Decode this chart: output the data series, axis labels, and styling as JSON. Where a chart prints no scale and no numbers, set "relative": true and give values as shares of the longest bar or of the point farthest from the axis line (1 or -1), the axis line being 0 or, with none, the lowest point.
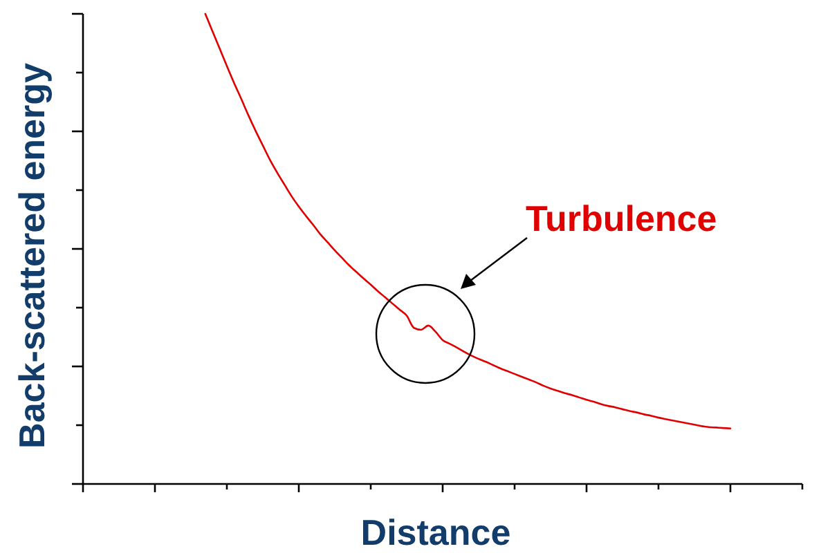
{
  "chart_data": {
    "type": "line",
    "relative": true,
    "xlabel": "Distance",
    "ylabel": "Back-scattered energy",
    "annotations": [
      "Turbulence"
    ],
    "categories": [
      null,
      null,
      null,
      null,
      null,
      null,
      null,
      null,
      null,
      null,
      null,
      null,
      null,
      null,
      null,
      null,
      null,
      null,
      null,
      null,
      null,
      null,
      null,
      null,
      null,
      null,
      null,
      null,
      null,
      null,
      null,
      null,
      null,
      null,
      null,
      null,
      null,
      null,
      null,
      null,
      null,
      null,
      null,
      null,
      null,
      null,
      null,
      null,
      null,
      null,
      null,
      null,
      null,
      null,
      null,
      null,
      null,
      null,
      null,
      null,
      null,
      null,
      null,
      null,
      null,
      null,
      null,
      null,
      null,
      null,
      null,
      null,
      null,
      null,
      null,
      null,
      null,
      null,
      null,
      null,
      null,
      null,
      null,
      null,
      null,
      null,
      null,
      null,
      null,
      null,
      null,
      null,
      null,
      null,
      null,
      null,
      null,
      null,
      null,
      null,
      null
    ],
    "series": [
      {
        "color": "#e00000",
        "values": [
          null,
          null,
          null,
          null,
          null,
          null,
          null,
          null,
          null,
          null,
          null,
          null,
          null,
          null,
          null,
          null,
          null,
          1.0,
          0.963,
          0.926,
          0.889,
          0.853,
          0.819,
          0.784,
          0.751,
          0.72,
          0.689,
          0.662,
          0.637,
          0.612,
          0.59,
          0.57,
          0.551,
          0.531,
          0.514,
          0.497,
          0.481,
          0.465,
          0.451,
          0.437,
          0.424,
          0.41,
          0.397,
          0.384,
          0.371,
          0.358,
          0.332,
          0.328,
          0.337,
          0.324,
          0.306,
          0.298,
          0.29,
          0.281,
          0.273,
          0.266,
          0.26,
          0.253,
          0.246,
          0.24,
          0.234,
          0.228,
          0.222,
          0.216,
          0.209,
          0.203,
          0.198,
          0.193,
          0.189,
          0.184,
          0.179,
          0.175,
          0.17,
          0.166,
          0.163,
          0.159,
          0.155,
          0.152,
          0.148,
          0.145,
          0.141,
          0.138,
          0.135,
          0.132,
          0.129,
          0.126,
          0.123,
          0.121,
          0.12,
          0.119,
          0.118,
          null,
          null,
          null,
          null,
          null,
          null,
          null,
          null,
          null,
          null
        ]
      }
    ]
  }
}
